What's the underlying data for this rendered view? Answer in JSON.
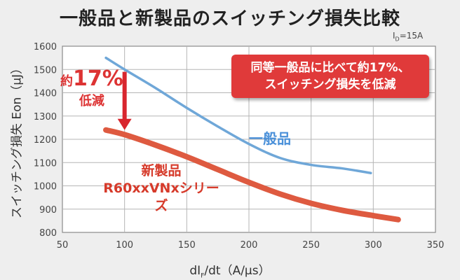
{
  "title": "一般品と新製品のスイッチング損失比較",
  "condition": {
    "main": "I",
    "sub": "D",
    "rest": "=15A"
  },
  "callout": {
    "line1": "同等一般品に比べて約17%、",
    "line2": "スイッチング損失を低減"
  },
  "reduction": {
    "prefix": "約",
    "value": "17%",
    "suffix": "低減"
  },
  "labels": {
    "general": "一般品",
    "new_line1": "新製品",
    "new_line2": "R60xxVNxシリーズ"
  },
  "colors": {
    "general": "#6fa7d8",
    "new": "#de5a40",
    "arrow": "#d8262e",
    "callout": "#e03a3a"
  },
  "chart_data": {
    "type": "line",
    "xlabel": {
      "main": "dI",
      "sub": "F",
      "rest": "/dt（A/µs）"
    },
    "ylabel": "スイッチング損失 Eon（µJ）",
    "xlim": [
      50,
      350
    ],
    "ylim": [
      800,
      1600
    ],
    "xticks": [
      50,
      100,
      150,
      200,
      250,
      300,
      350
    ],
    "yticks": [
      800,
      900,
      1000,
      1100,
      1200,
      1300,
      1400,
      1500,
      1600
    ],
    "grid": true,
    "series": [
      {
        "name": "一般品",
        "points": [
          [
            85,
            1550
          ],
          [
            100,
            1500
          ],
          [
            125,
            1420
          ],
          [
            150,
            1335
          ],
          [
            175,
            1255
          ],
          [
            200,
            1180
          ],
          [
            225,
            1120
          ],
          [
            250,
            1090
          ],
          [
            275,
            1075
          ],
          [
            298,
            1055
          ]
        ]
      },
      {
        "name": "新製品 R60xxVNxシリーズ",
        "points": [
          [
            85,
            1240
          ],
          [
            100,
            1220
          ],
          [
            125,
            1175
          ],
          [
            150,
            1125
          ],
          [
            175,
            1070
          ],
          [
            200,
            1015
          ],
          [
            225,
            965
          ],
          [
            250,
            925
          ],
          [
            275,
            895
          ],
          [
            300,
            872
          ],
          [
            320,
            855
          ]
        ]
      }
    ]
  }
}
